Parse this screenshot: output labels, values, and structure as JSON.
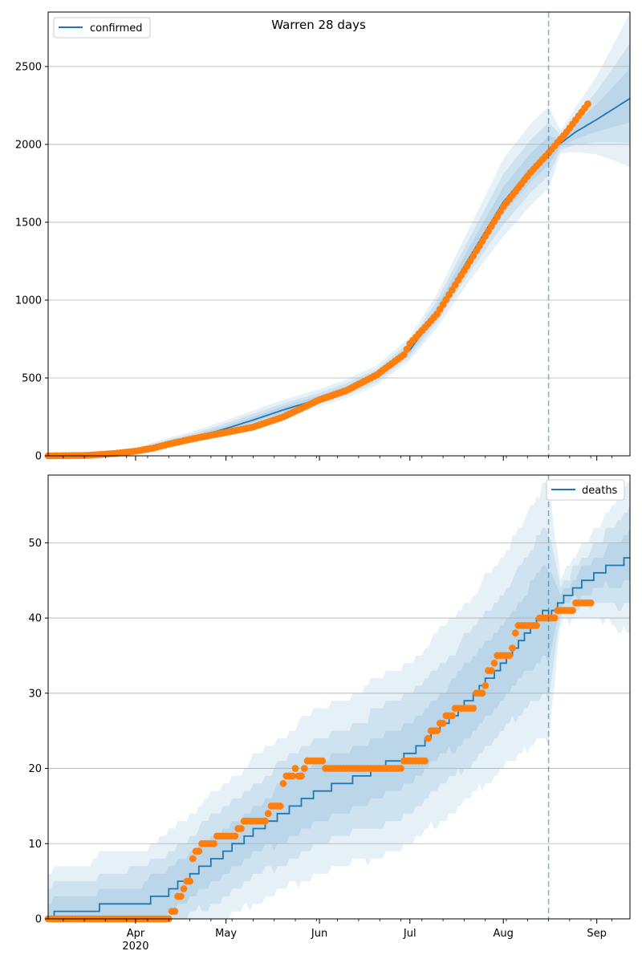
{
  "figure_title": "Warren 28 days",
  "colors": {
    "model": "#1f77b4",
    "observed": "#ff7f0e",
    "band": "#1f77b4",
    "grid": "#b0b0b0",
    "axis": "#000000"
  },
  "x_axis": {
    "start": "2020-03-03",
    "end": "2020-09-12",
    "major_ticks": [
      {
        "date": "2020-04-01",
        "label": "Apr",
        "sublabel": "2020"
      },
      {
        "date": "2020-05-01",
        "label": "May",
        "sublabel": ""
      },
      {
        "date": "2020-06-01",
        "label": "Jun",
        "sublabel": ""
      },
      {
        "date": "2020-07-01",
        "label": "Jul",
        "sublabel": ""
      },
      {
        "date": "2020-08-01",
        "label": "Aug",
        "sublabel": ""
      },
      {
        "date": "2020-09-01",
        "label": "Sep",
        "sublabel": ""
      }
    ],
    "forecast_date": "2020-08-16"
  },
  "chart_data": [
    {
      "type": "line",
      "title": "Warren 28 days",
      "legend": {
        "label": "confirmed",
        "position": "top-left"
      },
      "ylim": [
        0,
        2850
      ],
      "yticks": [
        0,
        500,
        1000,
        1500,
        2000,
        2500
      ],
      "grid": "horizontal",
      "model_knots": [
        [
          "2020-03-03",
          0
        ],
        [
          "2020-03-15",
          3
        ],
        [
          "2020-03-25",
          12
        ],
        [
          "2020-04-01",
          35
        ],
        [
          "2020-04-10",
          75
        ],
        [
          "2020-04-20",
          115
        ],
        [
          "2020-05-01",
          175
        ],
        [
          "2020-05-10",
          230
        ],
        [
          "2020-05-20",
          295
        ],
        [
          "2020-06-01",
          365
        ],
        [
          "2020-06-10",
          425
        ],
        [
          "2020-06-20",
          510
        ],
        [
          "2020-07-01",
          680
        ],
        [
          "2020-07-10",
          920
        ],
        [
          "2020-07-20",
          1250
        ],
        [
          "2020-08-01",
          1630
        ],
        [
          "2020-08-10",
          1840
        ],
        [
          "2020-08-16",
          1950
        ],
        [
          "2020-08-25",
          2080
        ],
        [
          "2020-09-01",
          2160
        ],
        [
          "2020-09-12",
          2295
        ]
      ],
      "band_spread": [
        [
          "2020-03-03",
          0
        ],
        [
          "2020-04-01",
          0.45
        ],
        [
          "2020-05-01",
          0.3
        ],
        [
          "2020-06-01",
          0.17
        ],
        [
          "2020-07-01",
          0.12
        ],
        [
          "2020-07-15",
          0.14
        ],
        [
          "2020-08-01",
          0.17
        ],
        [
          "2020-08-16",
          0.15
        ],
        [
          "2020-08-20",
          0.04
        ],
        [
          "2020-09-01",
          0.13
        ],
        [
          "2020-09-12",
          0.24
        ]
      ],
      "band_levels": [
        1.0,
        0.65,
        0.35
      ],
      "observed_knots": [
        [
          "2020-03-03",
          0
        ],
        [
          "2020-03-15",
          2
        ],
        [
          "2020-03-25",
          15
        ],
        [
          "2020-04-01",
          30
        ],
        [
          "2020-04-07",
          50
        ],
        [
          "2020-04-12",
          75
        ],
        [
          "2020-04-20",
          110
        ],
        [
          "2020-05-01",
          150
        ],
        [
          "2020-05-10",
          185
        ],
        [
          "2020-05-20",
          250
        ],
        [
          "2020-06-01",
          360
        ],
        [
          "2020-06-10",
          420
        ],
        [
          "2020-06-20",
          520
        ],
        [
          "2020-06-29",
          650
        ],
        [
          "2020-07-01",
          720
        ],
        [
          "2020-07-10",
          910
        ],
        [
          "2020-07-20",
          1220
        ],
        [
          "2020-08-01",
          1600
        ],
        [
          "2020-08-10",
          1820
        ],
        [
          "2020-08-16",
          1945
        ],
        [
          "2020-08-22",
          2080
        ],
        [
          "2020-08-29",
          2260
        ]
      ]
    },
    {
      "type": "line",
      "title": "",
      "legend": {
        "label": "deaths",
        "position": "top-right"
      },
      "ylim": [
        0,
        59
      ],
      "yticks": [
        0,
        10,
        20,
        30,
        40,
        50
      ],
      "grid": "horizontal",
      "model_knots": [
        [
          "2020-03-03",
          0
        ],
        [
          "2020-03-07",
          1
        ],
        [
          "2020-04-01",
          2
        ],
        [
          "2020-04-10",
          3
        ],
        [
          "2020-04-20",
          6
        ],
        [
          "2020-05-01",
          9
        ],
        [
          "2020-05-15",
          13
        ],
        [
          "2020-06-01",
          17
        ],
        [
          "2020-06-15",
          19
        ],
        [
          "2020-07-01",
          22
        ],
        [
          "2020-07-15",
          27
        ],
        [
          "2020-08-01",
          34
        ],
        [
          "2020-08-14",
          41
        ],
        [
          "2020-08-16",
          40
        ],
        [
          "2020-08-22",
          43
        ],
        [
          "2020-09-01",
          46
        ],
        [
          "2020-09-12",
          48
        ]
      ],
      "band_spread": [
        [
          "2020-03-03",
          6
        ],
        [
          "2020-04-01",
          7
        ],
        [
          "2020-05-01",
          9
        ],
        [
          "2020-06-01",
          11
        ],
        [
          "2020-07-01",
          12
        ],
        [
          "2020-08-01",
          14
        ],
        [
          "2020-08-16",
          17
        ],
        [
          "2020-08-20",
          3
        ],
        [
          "2020-09-01",
          6
        ],
        [
          "2020-09-12",
          10
        ]
      ],
      "band_levels": [
        1.0,
        0.65,
        0.35
      ],
      "observed_steps": [
        [
          "2020-03-03",
          0
        ],
        [
          "2020-04-13",
          1
        ],
        [
          "2020-04-15",
          3
        ],
        [
          "2020-04-17",
          4
        ],
        [
          "2020-04-18",
          5
        ],
        [
          "2020-04-20",
          8
        ],
        [
          "2020-04-21",
          9
        ],
        [
          "2020-04-23",
          10
        ],
        [
          "2020-04-28",
          11
        ],
        [
          "2020-05-05",
          12
        ],
        [
          "2020-05-07",
          13
        ],
        [
          "2020-05-15",
          14
        ],
        [
          "2020-05-16",
          15
        ],
        [
          "2020-05-20",
          18
        ],
        [
          "2020-05-21",
          19
        ],
        [
          "2020-05-24",
          20
        ],
        [
          "2020-05-25",
          19
        ],
        [
          "2020-05-27",
          20
        ],
        [
          "2020-05-28",
          21
        ],
        [
          "2020-06-03",
          20
        ],
        [
          "2020-06-29",
          21
        ],
        [
          "2020-07-07",
          24
        ],
        [
          "2020-07-08",
          25
        ],
        [
          "2020-07-11",
          26
        ],
        [
          "2020-07-13",
          27
        ],
        [
          "2020-07-16",
          28
        ],
        [
          "2020-07-23",
          30
        ],
        [
          "2020-07-26",
          31
        ],
        [
          "2020-07-27",
          33
        ],
        [
          "2020-07-29",
          34
        ],
        [
          "2020-07-30",
          35
        ],
        [
          "2020-08-04",
          36
        ],
        [
          "2020-08-05",
          38
        ],
        [
          "2020-08-06",
          39
        ],
        [
          "2020-08-13",
          40
        ],
        [
          "2020-08-19",
          41
        ],
        [
          "2020-08-25",
          42
        ],
        [
          "2020-08-30",
          42
        ]
      ]
    }
  ]
}
